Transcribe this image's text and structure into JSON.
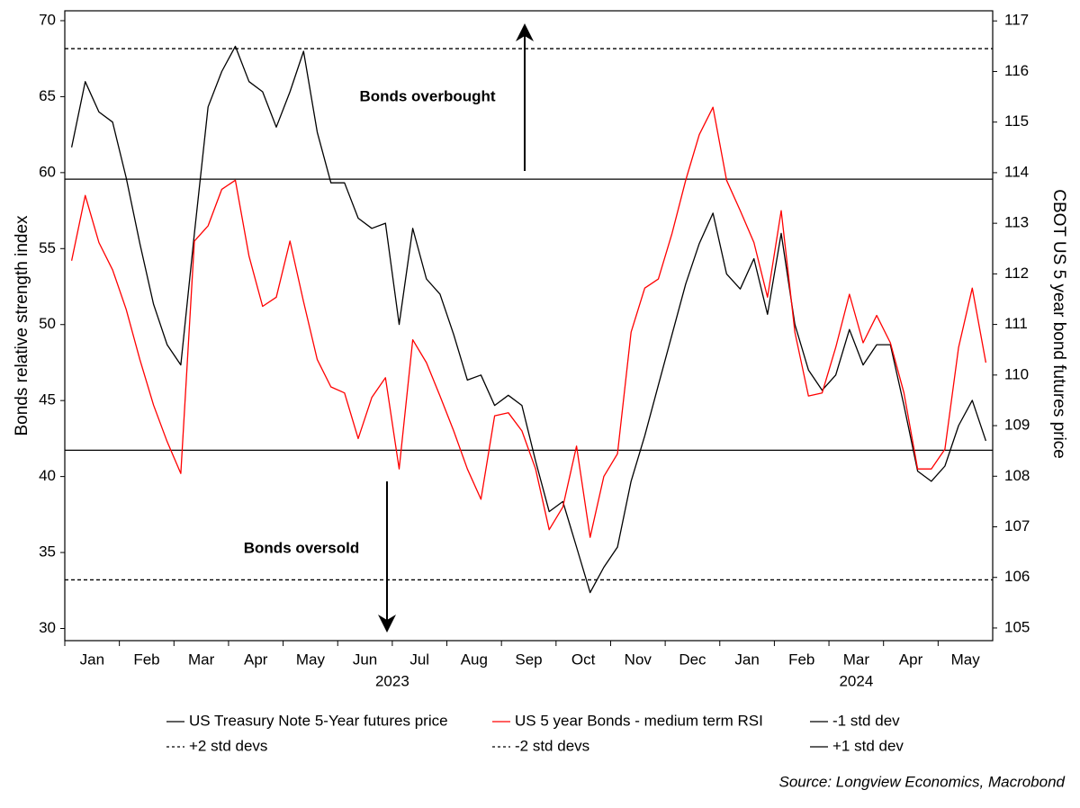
{
  "chart_data": {
    "type": "line",
    "x_groups": [
      {
        "label": "2023",
        "categories": [
          "Jan",
          "Feb",
          "Mar",
          "Apr",
          "May",
          "Jun",
          "Jul",
          "Aug",
          "Sep",
          "Oct",
          "Nov",
          "Dec"
        ]
      },
      {
        "label": "2024",
        "categories": [
          "Jan",
          "Feb",
          "Mar",
          "Apr",
          "May"
        ]
      }
    ],
    "ylabel": "Bonds relative strength index",
    "y2label": "CBOT US 5 year bond futures price",
    "ylim": [
      29.2,
      70.65
    ],
    "yticks": [
      30,
      35,
      40,
      45,
      50,
      55,
      60,
      65,
      70
    ],
    "y2lim": [
      104.75,
      117.2
    ],
    "y2ticks": [
      105,
      106,
      107,
      108,
      109,
      110,
      111,
      112,
      113,
      114,
      115,
      116,
      117
    ],
    "series": [
      {
        "name": "US Treasury Note 5-Year futures price",
        "color": "#000000",
        "axis": "y2",
        "values": [
          [
            114.5,
            115.8,
            115.2,
            115.0
          ],
          [
            113.9,
            112.6,
            111.4,
            110.6
          ],
          [
            110.2,
            112.8,
            115.3,
            116.0
          ],
          [
            116.5,
            115.8,
            115.6,
            114.9
          ],
          [
            115.6,
            116.4,
            114.8,
            113.8
          ],
          [
            113.8,
            113.1,
            112.9,
            113.0
          ],
          [
            111.0,
            112.9,
            111.9,
            111.6
          ],
          [
            110.8,
            109.9,
            110.0,
            109.4
          ],
          [
            109.6,
            109.4,
            108.3,
            107.3
          ],
          [
            107.5,
            106.6,
            105.7,
            106.2
          ],
          [
            106.6,
            107.9,
            108.8,
            109.8
          ],
          [
            110.8,
            111.8,
            112.6,
            113.2
          ],
          [
            112.0,
            111.7,
            112.3,
            111.2
          ],
          [
            112.8,
            111.0,
            110.1,
            109.7
          ],
          [
            110.0,
            110.9,
            110.2,
            110.6
          ],
          [
            110.6,
            109.4,
            108.1,
            107.9
          ],
          [
            108.2,
            109.0,
            109.5,
            108.7
          ]
        ]
      },
      {
        "name": "US 5 year Bonds - medium term RSI",
        "color": "#ff0000",
        "values": [
          [
            54.2,
            58.5,
            55.4,
            53.6
          ],
          [
            51.0,
            47.7,
            44.7,
            42.3
          ],
          [
            40.2,
            55.5,
            56.5,
            58.9
          ],
          [
            59.5,
            54.5,
            51.2,
            51.8
          ],
          [
            55.5,
            51.5,
            47.7,
            45.9
          ],
          [
            45.5,
            42.5,
            45.2,
            46.5
          ],
          [
            40.5,
            49.0,
            47.5,
            45.3
          ],
          [
            43.0,
            40.5,
            38.5,
            44.0
          ],
          [
            44.2,
            43.0,
            40.5,
            36.5
          ],
          [
            38.0,
            42.0,
            36.0,
            40.0
          ],
          [
            41.5,
            49.5,
            52.4,
            53.0
          ],
          [
            56.0,
            59.5,
            62.5,
            64.3
          ],
          [
            59.5,
            57.5,
            55.4,
            51.8
          ],
          [
            57.5,
            49.5,
            45.3,
            45.5
          ],
          [
            48.5,
            52.0,
            48.8,
            50.6
          ],
          [
            48.8,
            45.5,
            40.5,
            40.5
          ],
          [
            41.8,
            48.5,
            52.4,
            47.5
          ]
        ]
      }
    ],
    "reference_lines": [
      {
        "name": "-1 std dev",
        "value": 41.73,
        "style": "solid"
      },
      {
        "name": "+2 std devs",
        "value": 68.16,
        "style": "dashed"
      },
      {
        "name": "-2 std devs",
        "value": 33.2,
        "style": "dashed"
      },
      {
        "name": "+1 std dev",
        "value": 59.57,
        "style": "solid"
      }
    ],
    "annotations": [
      {
        "text": "Bonds overbought",
        "direction": "up"
      },
      {
        "text": "Bonds oversold",
        "direction": "down"
      }
    ],
    "source": "Source: Longview Economics, Macrobond"
  }
}
